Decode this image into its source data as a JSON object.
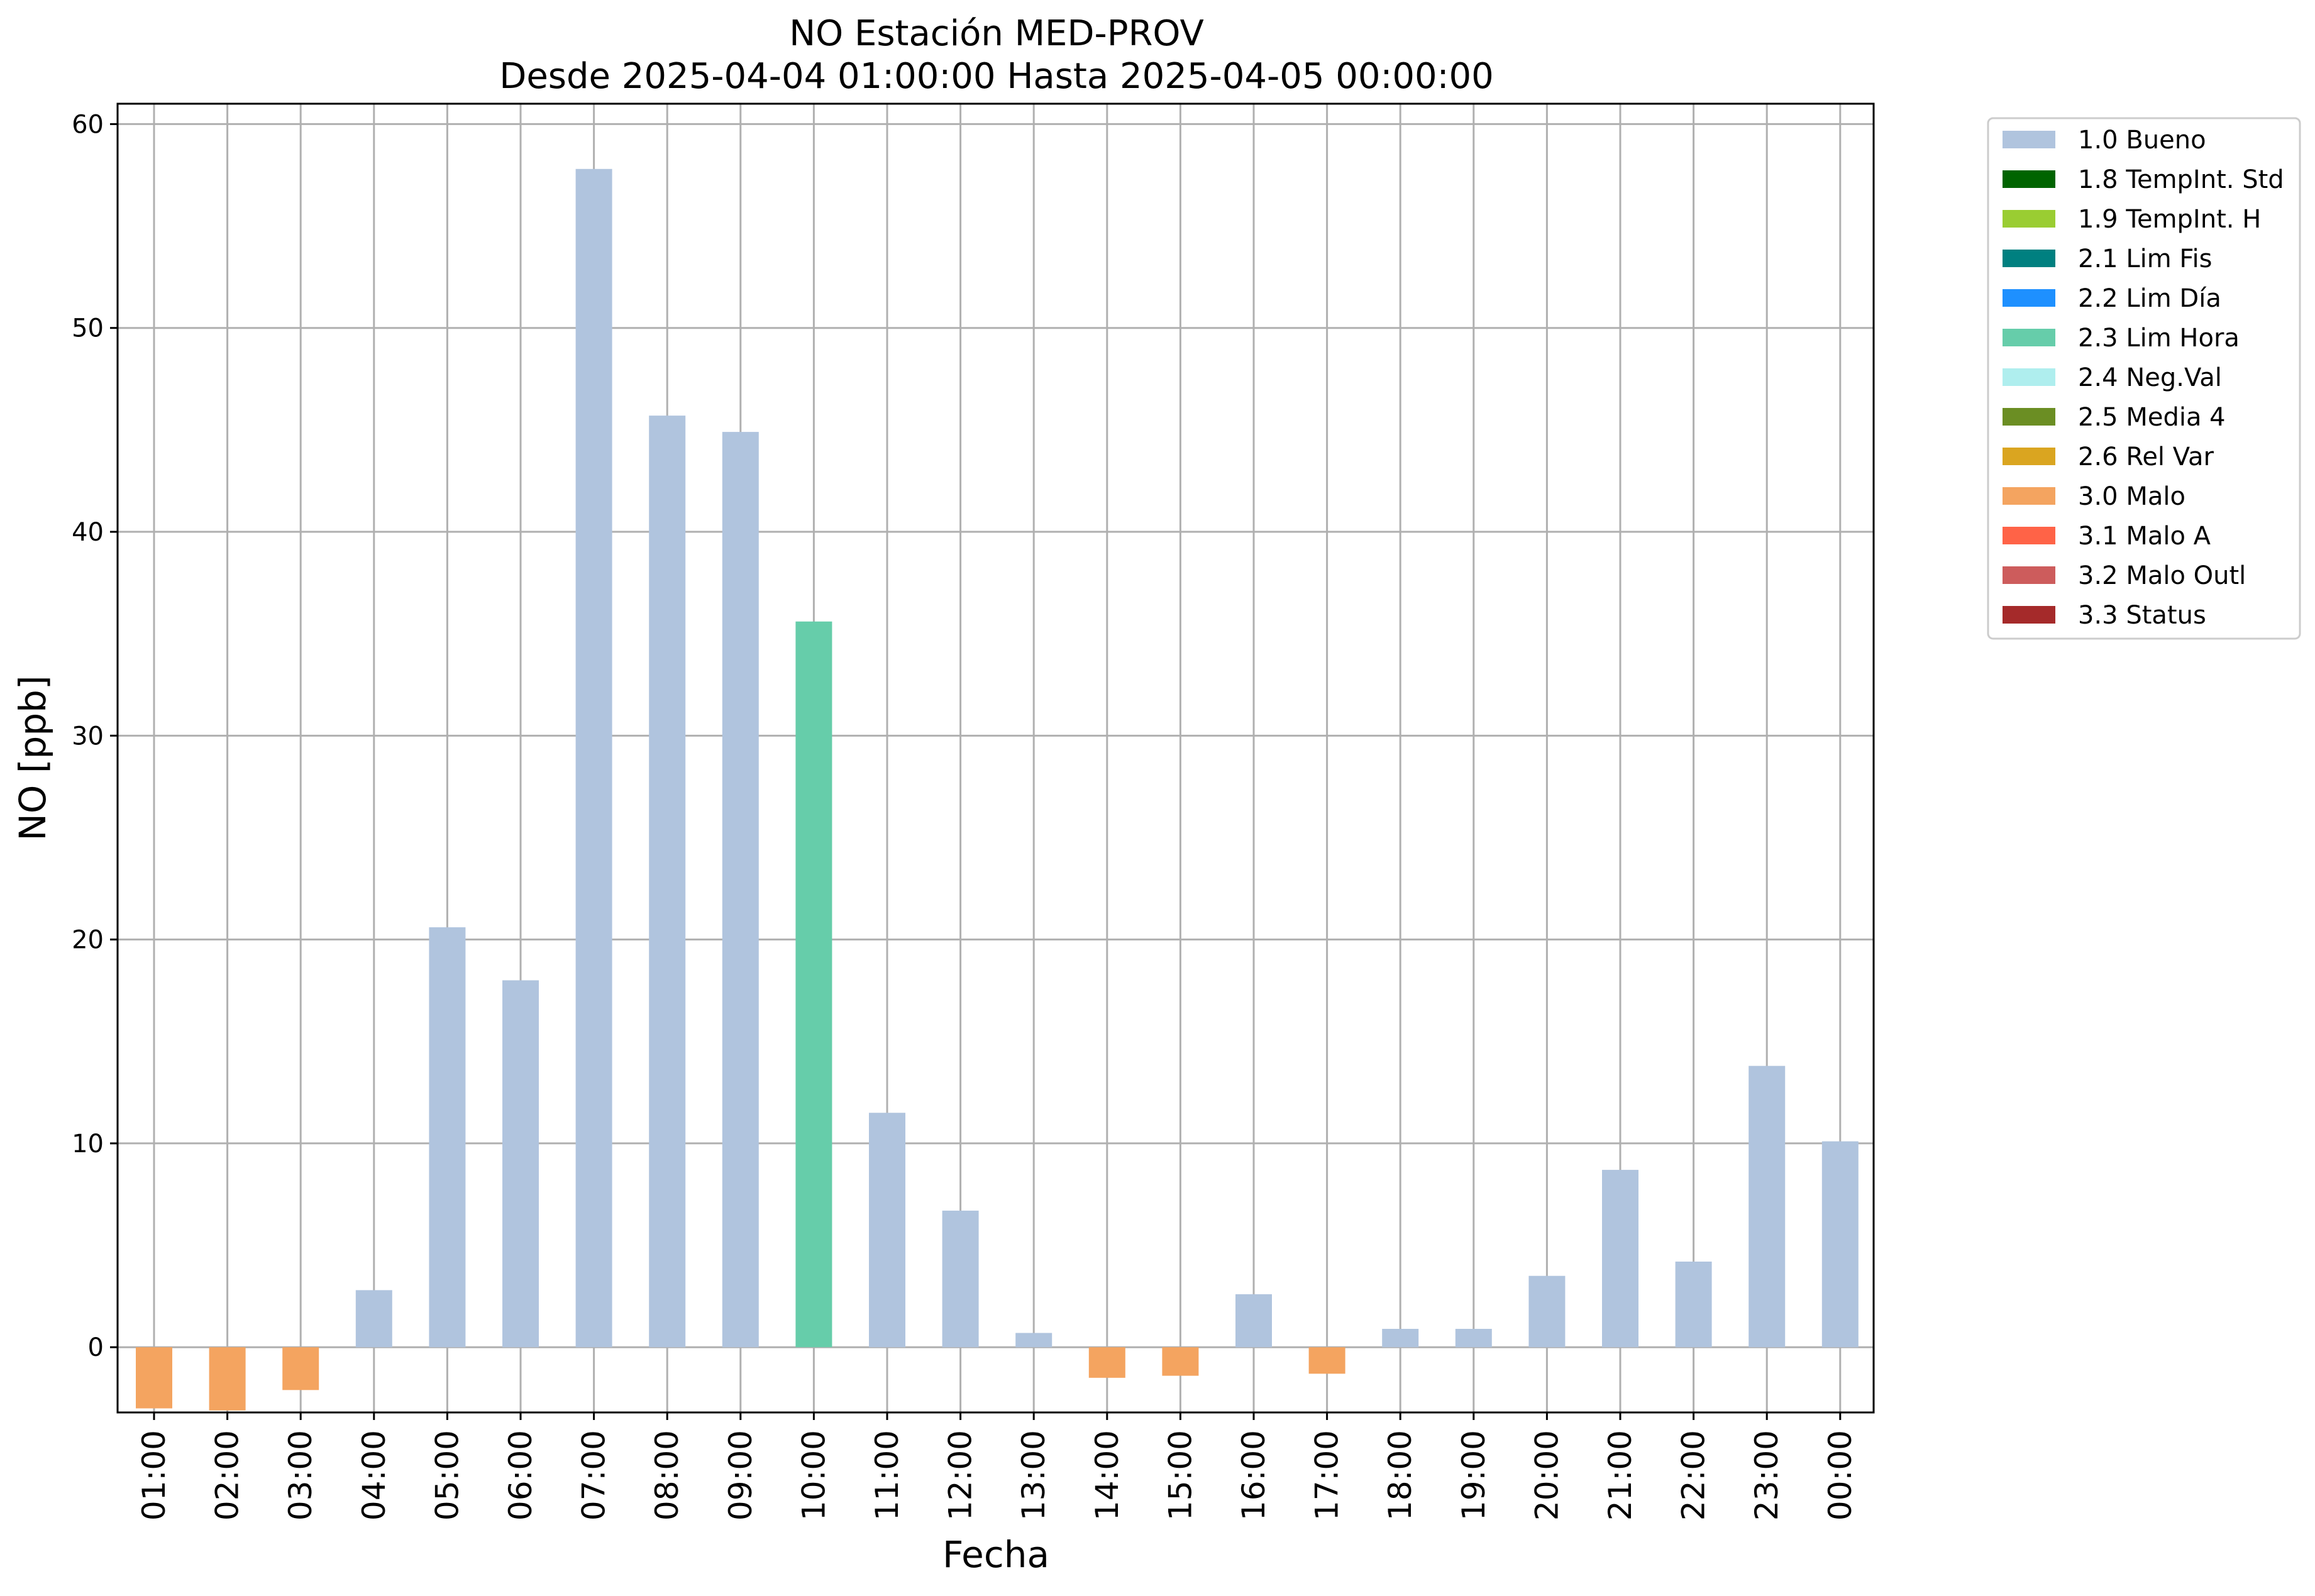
{
  "chart_data": {
    "type": "bar",
    "title": "NO Estación MED-PROV",
    "subtitle": "Desde 2025-04-04 01:00:00 Hasta 2025-04-05 00:00:00",
    "xlabel": "Fecha",
    "ylabel": "NO [ppb]",
    "ylim": [
      -3.2,
      61
    ],
    "yticks": [
      0,
      10,
      20,
      30,
      40,
      50,
      60
    ],
    "grid": true,
    "legend_position": "outside-top-right",
    "categories": [
      "01:00",
      "02:00",
      "03:00",
      "04:00",
      "05:00",
      "06:00",
      "07:00",
      "08:00",
      "09:00",
      "10:00",
      "11:00",
      "12:00",
      "13:00",
      "14:00",
      "15:00",
      "16:00",
      "17:00",
      "18:00",
      "19:00",
      "20:00",
      "21:00",
      "22:00",
      "23:00",
      "00:00"
    ],
    "values": [
      -3.0,
      -3.1,
      -2.1,
      2.8,
      20.6,
      18.0,
      57.8,
      45.7,
      44.9,
      35.6,
      11.5,
      6.7,
      0.7,
      -1.5,
      -1.4,
      2.6,
      -1.3,
      0.9,
      0.9,
      3.5,
      8.7,
      4.2,
      13.8,
      10.1
    ],
    "flags": [
      "3.0 Malo",
      "3.0 Malo",
      "3.0 Malo",
      "1.0 Bueno",
      "1.0 Bueno",
      "1.0 Bueno",
      "1.0 Bueno",
      "1.0 Bueno",
      "1.0 Bueno",
      "2.3 Lim Hora",
      "1.0 Bueno",
      "1.0 Bueno",
      "1.0 Bueno",
      "3.0 Malo",
      "3.0 Malo",
      "1.0 Bueno",
      "3.0 Malo",
      "1.0 Bueno",
      "1.0 Bueno",
      "1.0 Bueno",
      "1.0 Bueno",
      "1.0 Bueno",
      "1.0 Bueno",
      "1.0 Bueno"
    ],
    "legend": [
      {
        "label": "1.0 Bueno",
        "color": "#b0c4de"
      },
      {
        "label": "1.8 TempInt. Std",
        "color": "#006400"
      },
      {
        "label": "1.9 TempInt. H",
        "color": "#9acd32"
      },
      {
        "label": "2.1 Lim Fis",
        "color": "#008080"
      },
      {
        "label": "2.2 Lim Día",
        "color": "#1e90ff"
      },
      {
        "label": "2.3 Lim Hora",
        "color": "#66cdaa"
      },
      {
        "label": "2.4 Neg.Val",
        "color": "#afeeee"
      },
      {
        "label": "2.5 Media 4",
        "color": "#6b8e23"
      },
      {
        "label": "2.6 Rel Var",
        "color": "#daa520"
      },
      {
        "label": "3.0 Malo",
        "color": "#f4a460"
      },
      {
        "label": "3.1 Malo A",
        "color": "#ff6347"
      },
      {
        "label": "3.2 Malo Outl",
        "color": "#cd5c5c"
      },
      {
        "label": "3.3 Status",
        "color": "#a52a2a"
      }
    ]
  }
}
